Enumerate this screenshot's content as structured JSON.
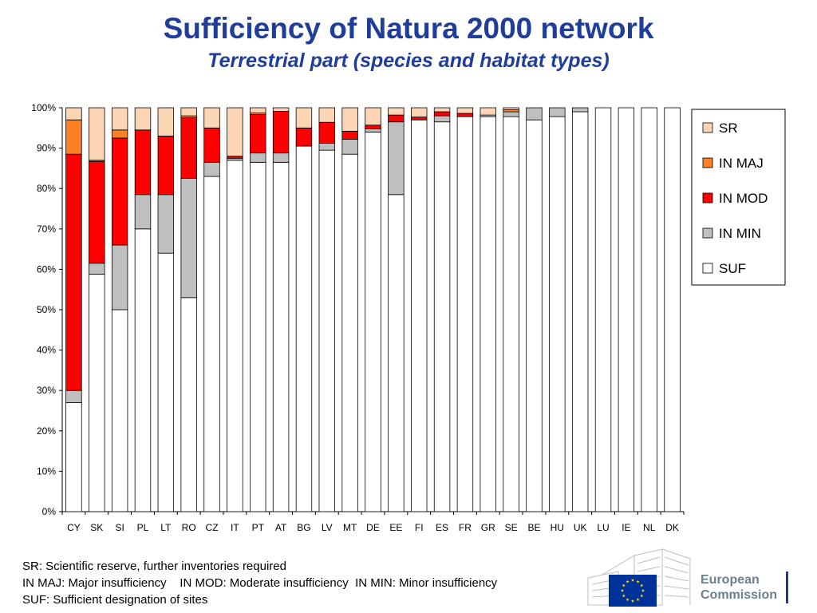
{
  "header": {
    "title": "Sufficiency of Natura 2000 network",
    "subtitle": "Terrestrial part (species and habitat types)"
  },
  "notes": {
    "line1": "SR: Scientific reserve, further inventories required",
    "line2": "IN MAJ: Major insufficiency    IN MOD: Moderate insufficiency  IN MIN: Minor insufficiency",
    "line3": "SUF: Sufficient designation of sites"
  },
  "logo": {
    "line1": "European",
    "line2": "Commission",
    "flag_color": "#003399",
    "star_color": "#ffdd00"
  },
  "chart_data": {
    "type": "bar",
    "stacked": true,
    "percent": true,
    "title": "",
    "xlabel": "",
    "ylabel": "",
    "ylim": [
      0,
      100
    ],
    "yticks": [
      "0%",
      "10%",
      "20%",
      "30%",
      "40%",
      "50%",
      "60%",
      "70%",
      "80%",
      "90%",
      "100%"
    ],
    "grid": false,
    "legend": "right",
    "categories": [
      "CY",
      "SK",
      "SI",
      "PL",
      "LT",
      "RO",
      "CZ",
      "IT",
      "PT",
      "AT",
      "BG",
      "LV",
      "MT",
      "DE",
      "EE",
      "FI",
      "ES",
      "FR",
      "GR",
      "SE",
      "BE",
      "HU",
      "UK",
      "LU",
      "IE",
      "NL",
      "DK"
    ],
    "series": [
      {
        "name": "SUF",
        "color": "#ffffff",
        "values": [
          27,
          58.8,
          50,
          70,
          64,
          53,
          83,
          87,
          86.5,
          86.5,
          90.5,
          89.5,
          88.5,
          94,
          78.5,
          97,
          96.5,
          97.8,
          97.8,
          97.8,
          97,
          97.8,
          99,
          100,
          100,
          100,
          100
        ]
      },
      {
        "name": "IN MIN",
        "color": "#bfbfbf",
        "values": [
          3,
          2.7,
          16,
          8.5,
          14.5,
          29.5,
          3.5,
          0.5,
          2.3,
          2.3,
          0,
          1.7,
          3.7,
          0.8,
          18,
          0,
          1.5,
          0,
          0.4,
          1.2,
          3,
          2.2,
          1,
          0,
          0,
          0,
          0
        ]
      },
      {
        "name": "IN MOD",
        "color": "#ff0000",
        "values": [
          58.5,
          25.2,
          26.5,
          16,
          14.5,
          15,
          8.5,
          0.5,
          9.5,
          10.3,
          4.5,
          5.2,
          2,
          0.9,
          1.7,
          0.7,
          1,
          0.8,
          0,
          0,
          0,
          0,
          0,
          0,
          0,
          0,
          0
        ]
      },
      {
        "name": "IN MAJ",
        "color": "#ff7f27",
        "values": [
          8.5,
          0.3,
          2,
          0,
          0,
          0.5,
          0,
          0,
          0.4,
          0,
          0,
          0,
          0,
          0,
          0,
          0,
          0,
          0,
          0,
          0.5,
          0,
          0,
          0,
          0,
          0,
          0,
          0
        ]
      },
      {
        "name": "SR",
        "color": "#fcd5b4",
        "values": [
          3,
          13,
          5.5,
          5.5,
          7,
          2,
          5,
          12,
          1.3,
          0.9,
          5,
          3.6,
          5.8,
          4.3,
          1.8,
          2.3,
          1,
          1.4,
          1.8,
          0.5,
          0,
          0,
          0,
          0,
          0,
          0,
          0
        ]
      }
    ],
    "legend_order": [
      "SR",
      "IN MAJ",
      "IN MOD",
      "IN MIN",
      "SUF"
    ]
  }
}
